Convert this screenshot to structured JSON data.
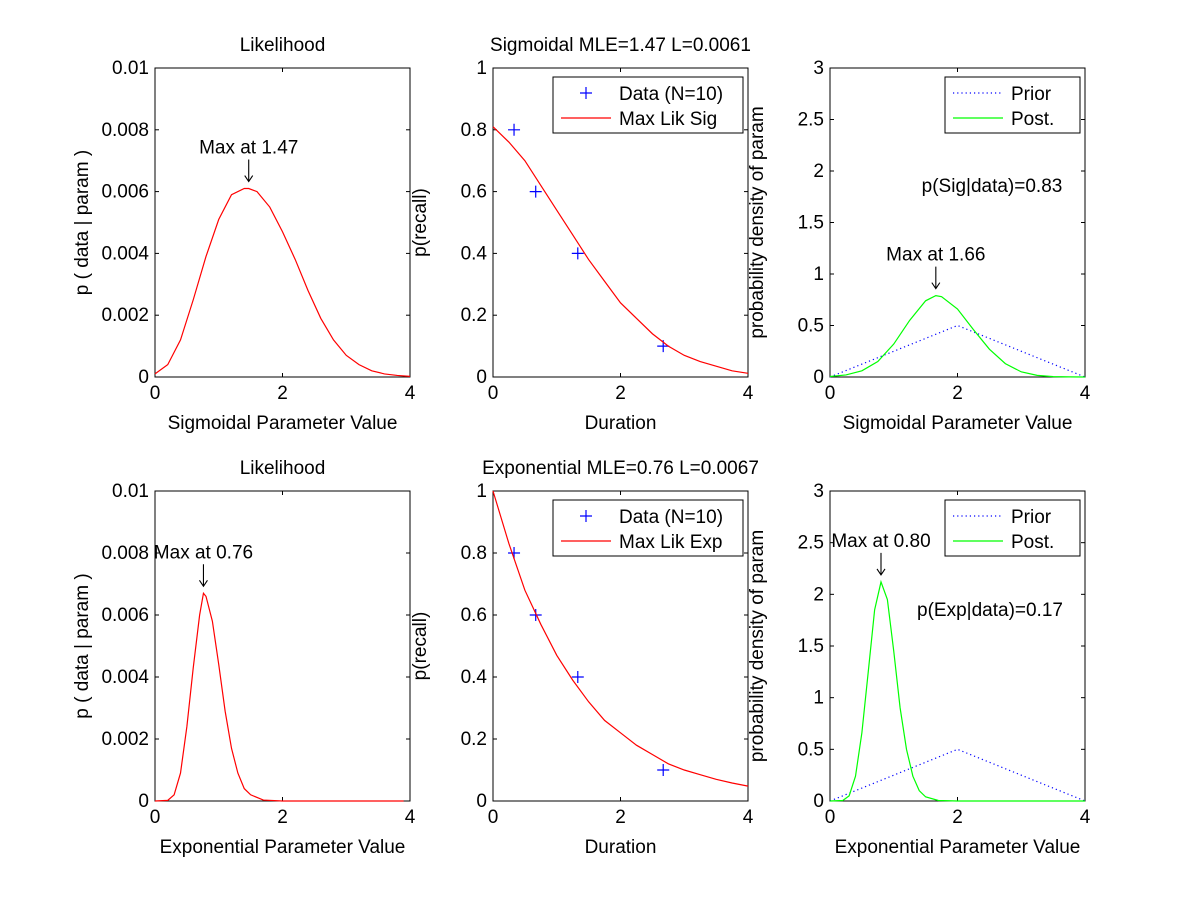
{
  "chart_data": [
    {
      "type": "line",
      "title": "Likelihood",
      "xlabel": "Sigmoidal Parameter Value",
      "ylabel": "p ( data | param )",
      "xlim": [
        0,
        4
      ],
      "ylim": [
        0,
        0.01
      ],
      "xticks": [
        "0",
        "2",
        "4"
      ],
      "yticks": [
        "0",
        "0.002",
        "0.004",
        "0.006",
        "0.008",
        "0.01"
      ],
      "grid": false,
      "series": [
        {
          "color": "#ff0000",
          "style": "solid",
          "x": [
            0,
            0.2,
            0.4,
            0.6,
            0.8,
            1.0,
            1.2,
            1.4,
            1.47,
            1.6,
            1.8,
            2.0,
            2.2,
            2.4,
            2.6,
            2.8,
            3.0,
            3.2,
            3.4,
            3.6,
            3.8,
            4.0
          ],
          "values": [
            0.0001,
            0.0004,
            0.0012,
            0.0025,
            0.0039,
            0.0051,
            0.0059,
            0.0061,
            0.0061,
            0.006,
            0.0055,
            0.0047,
            0.0038,
            0.0028,
            0.0019,
            0.0012,
            0.0007,
            0.0004,
            0.0002,
            0.0001,
            5e-05,
            2e-05
          ]
        }
      ],
      "annotations": [
        {
          "text": "Max at 1.47",
          "x": 1.47,
          "y": 0.0061
        }
      ]
    },
    {
      "type": "line",
      "title": "Sigmoidal MLE=1.47 L=0.0061",
      "xlabel": "Duration",
      "ylabel": "p(recall)",
      "xlim": [
        0,
        4
      ],
      "ylim": [
        0,
        1
      ],
      "xticks": [
        "0",
        "2",
        "4"
      ],
      "yticks": [
        "0",
        "0.2",
        "0.4",
        "0.6",
        "0.8",
        "1"
      ],
      "legend": "top-right",
      "grid": false,
      "series": [
        {
          "name": "Data (N=10)",
          "kind": "scatter",
          "marker": "+",
          "color": "#0000ff",
          "x": [
            0.33,
            0.67,
            1.33,
            2.67
          ],
          "values": [
            0.8,
            0.6,
            0.4,
            0.1
          ]
        },
        {
          "name": "Max Lik Sig",
          "color": "#ff0000",
          "style": "solid",
          "x": [
            0,
            0.25,
            0.5,
            0.75,
            1.0,
            1.25,
            1.5,
            1.75,
            2.0,
            2.25,
            2.5,
            2.75,
            3.0,
            3.25,
            3.5,
            3.75,
            4.0
          ],
          "values": [
            0.81,
            0.76,
            0.7,
            0.62,
            0.54,
            0.46,
            0.38,
            0.31,
            0.24,
            0.19,
            0.14,
            0.1,
            0.07,
            0.05,
            0.035,
            0.02,
            0.012
          ]
        }
      ]
    },
    {
      "type": "line",
      "xlabel": "Sigmoidal Parameter Value",
      "ylabel": "probability density of param",
      "xlim": [
        0,
        4
      ],
      "ylim": [
        0,
        3
      ],
      "xticks": [
        "0",
        "2",
        "4"
      ],
      "yticks": [
        "0",
        "0.5",
        "1",
        "1.5",
        "2",
        "2.5",
        "3"
      ],
      "legend": "top-right",
      "grid": false,
      "series": [
        {
          "name": "Prior",
          "color": "#0000ff",
          "style": "dotted",
          "x": [
            0,
            2,
            4
          ],
          "values": [
            0,
            0.5,
            0
          ]
        },
        {
          "name": "Post.",
          "color": "#00ff00",
          "style": "solid",
          "x": [
            0,
            0.25,
            0.5,
            0.75,
            1.0,
            1.25,
            1.5,
            1.66,
            1.75,
            2.0,
            2.25,
            2.5,
            2.75,
            3.0,
            3.25,
            3.5,
            3.75,
            4.0
          ],
          "values": [
            0.005,
            0.02,
            0.06,
            0.15,
            0.32,
            0.55,
            0.74,
            0.79,
            0.78,
            0.66,
            0.46,
            0.27,
            0.13,
            0.05,
            0.016,
            0.004,
            0.001,
            0.0
          ]
        }
      ],
      "annotations": [
        {
          "text": "Max at 1.66",
          "x": 1.66,
          "y": 0.79
        },
        {
          "text": "p(Sig|data)=0.83"
        }
      ]
    },
    {
      "type": "line",
      "title": "Likelihood",
      "xlabel": "Exponential Parameter Value",
      "ylabel": "p ( data | param )",
      "xlim": [
        0,
        4
      ],
      "ylim": [
        0,
        0.01
      ],
      "xticks": [
        "0",
        "2",
        "4"
      ],
      "yticks": [
        "0",
        "0.002",
        "0.004",
        "0.006",
        "0.008",
        "0.01"
      ],
      "grid": false,
      "series": [
        {
          "color": "#ff0000",
          "style": "solid",
          "x": [
            0,
            0.2,
            0.3,
            0.4,
            0.5,
            0.6,
            0.7,
            0.76,
            0.8,
            0.9,
            1.0,
            1.1,
            1.2,
            1.3,
            1.4,
            1.5,
            1.7,
            2.0,
            3.0,
            3.9
          ],
          "values": [
            0,
            2e-05,
            0.0002,
            0.0009,
            0.0024,
            0.0043,
            0.006,
            0.0067,
            0.0066,
            0.0058,
            0.0044,
            0.0029,
            0.0017,
            0.0009,
            0.0004,
            0.0002,
            3e-05,
            0,
            0,
            0
          ]
        }
      ],
      "annotations": [
        {
          "text": "Max at 0.76",
          "x": 0.76,
          "y": 0.0067
        }
      ]
    },
    {
      "type": "line",
      "title": "Exponential MLE=0.76 L=0.0067",
      "xlabel": "Duration",
      "ylabel": "p(recall)",
      "xlim": [
        0,
        4
      ],
      "ylim": [
        0,
        1
      ],
      "xticks": [
        "0",
        "2",
        "4"
      ],
      "yticks": [
        "0",
        "0.2",
        "0.4",
        "0.6",
        "0.8",
        "1"
      ],
      "legend": "top-right",
      "grid": false,
      "series": [
        {
          "name": "Data (N=10)",
          "kind": "scatter",
          "marker": "+",
          "color": "#0000ff",
          "x": [
            0.33,
            0.67,
            1.33,
            2.67
          ],
          "values": [
            0.8,
            0.6,
            0.4,
            0.1
          ]
        },
        {
          "name": "Max Lik Exp",
          "color": "#ff0000",
          "style": "solid",
          "x": [
            0,
            0.25,
            0.5,
            0.75,
            1.0,
            1.25,
            1.5,
            1.75,
            2.0,
            2.25,
            2.5,
            2.75,
            3.0,
            3.25,
            3.5,
            3.75,
            4.0
          ],
          "values": [
            1.0,
            0.83,
            0.68,
            0.57,
            0.47,
            0.39,
            0.32,
            0.26,
            0.22,
            0.18,
            0.15,
            0.12,
            0.1,
            0.085,
            0.07,
            0.058,
            0.048
          ]
        }
      ]
    },
    {
      "type": "line",
      "xlabel": "Exponential Parameter Value",
      "ylabel": "probability density of param",
      "xlim": [
        0,
        4
      ],
      "ylim": [
        0,
        3
      ],
      "xticks": [
        "0",
        "2",
        "4"
      ],
      "yticks": [
        "0",
        "0.5",
        "1",
        "1.5",
        "2",
        "2.5",
        "3"
      ],
      "legend": "top-right",
      "grid": false,
      "series": [
        {
          "name": "Prior",
          "color": "#0000ff",
          "style": "dotted",
          "x": [
            0,
            2,
            4
          ],
          "values": [
            0,
            0.5,
            0
          ]
        },
        {
          "name": "Post.",
          "color": "#00ff00",
          "style": "solid",
          "x": [
            0,
            0.2,
            0.3,
            0.4,
            0.5,
            0.6,
            0.7,
            0.8,
            0.9,
            1.0,
            1.1,
            1.2,
            1.3,
            1.4,
            1.5,
            1.7,
            2.0,
            3.0,
            4.0
          ],
          "values": [
            0,
            0.005,
            0.05,
            0.24,
            0.66,
            1.25,
            1.85,
            2.12,
            1.95,
            1.45,
            0.9,
            0.5,
            0.24,
            0.1,
            0.04,
            0.005,
            0,
            0,
            0
          ]
        }
      ],
      "annotations": [
        {
          "text": "Max at 0.80",
          "x": 0.8,
          "y": 2.12
        },
        {
          "text": "p(Exp|data)=0.17"
        }
      ]
    }
  ]
}
